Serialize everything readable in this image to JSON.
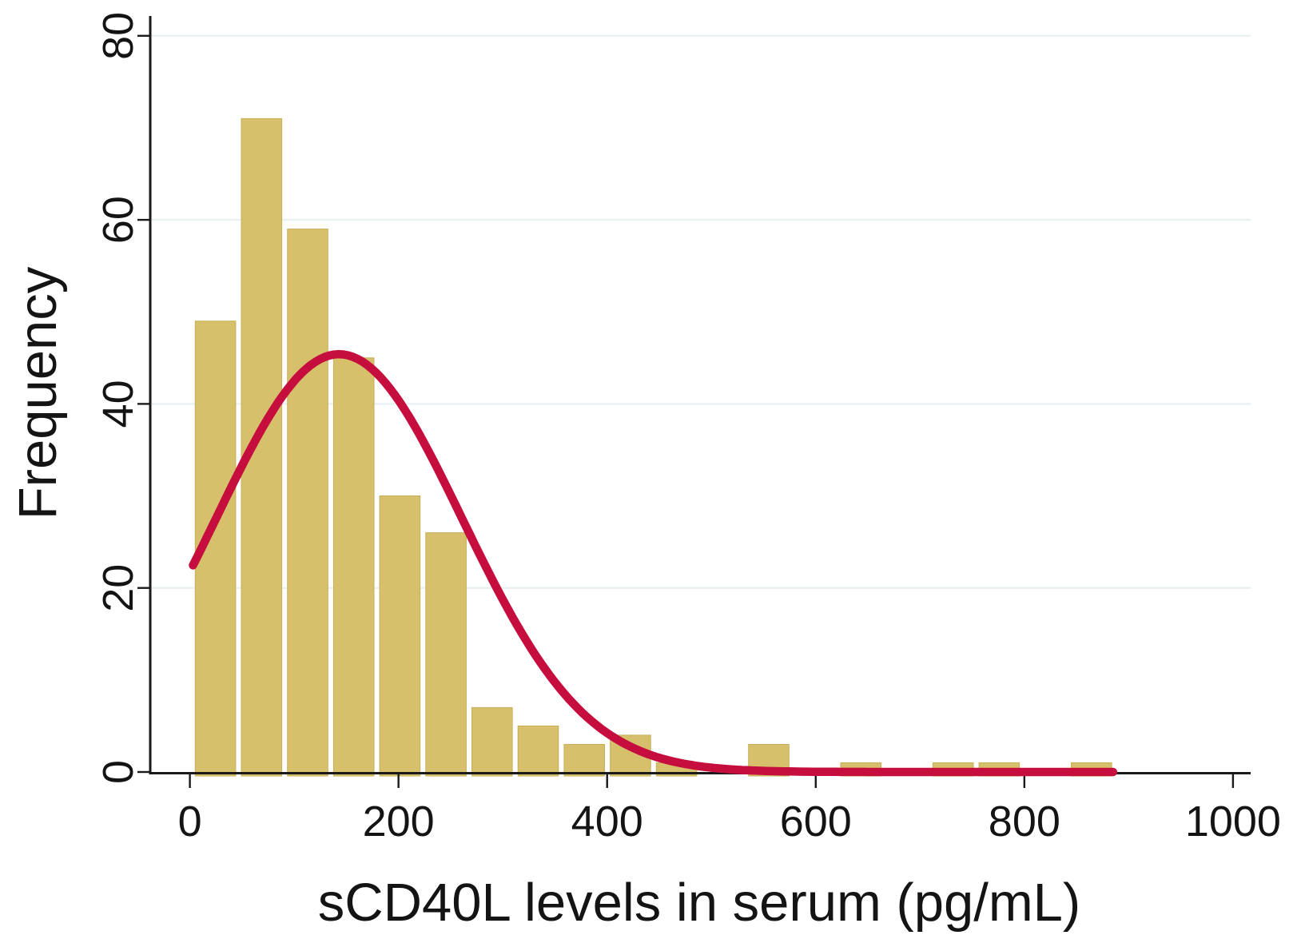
{
  "figure": {
    "background": "#ffffff",
    "axis_color": "#1a1a1a",
    "grid_color": "#eaf1f3",
    "bar_fill": "#d7c06c",
    "bar_stroke": "#c7af58",
    "curve_color": "#c50e3d",
    "text_color": "#141414"
  },
  "chart_data": {
    "type": "bar",
    "subtype": "histogram_with_normal_curve",
    "title": "",
    "xlabel": "sCD40L levels in serum (pg/mL)",
    "ylabel": "Frequency",
    "x_ticks": [
      0,
      200,
      400,
      600,
      800,
      1000
    ],
    "y_ticks": [
      0,
      20,
      40,
      60,
      80
    ],
    "xlim": [
      -38,
      1017
    ],
    "ylim": [
      0,
      80
    ],
    "grid": "horizontal",
    "legend": "none",
    "bins": {
      "start": 5,
      "width": 44.2,
      "counts": [
        49,
        71,
        59,
        45,
        30,
        26,
        7,
        5,
        3,
        4,
        1,
        0,
        3,
        0,
        1,
        0,
        1,
        1,
        0,
        1
      ]
    },
    "normal_curve": {
      "mean": 143,
      "sd": 118,
      "peak": 45.4,
      "x_start": 3,
      "x_end": 886
    }
  }
}
